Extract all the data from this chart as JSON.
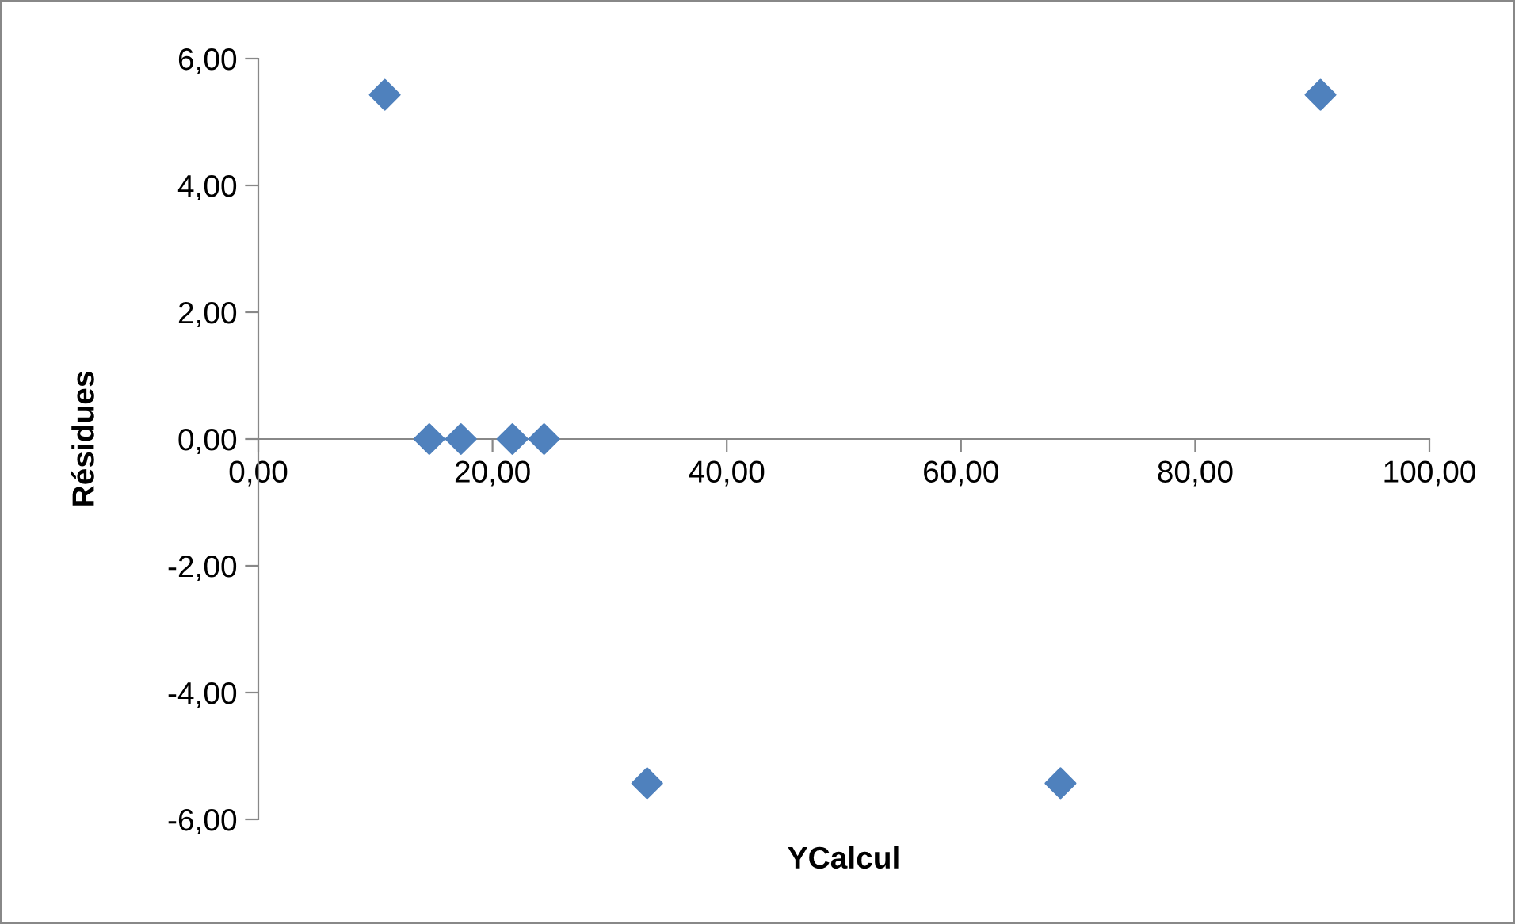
{
  "chart_data": {
    "type": "scatter",
    "xlabel": "YCalcul",
    "ylabel": "Résidues",
    "x": [
      10.8,
      14.6,
      17.3,
      21.7,
      24.4,
      33.2,
      68.5,
      90.7
    ],
    "series": [
      {
        "color": "#4f81bd",
        "values": [
          5.43,
          0,
          0,
          0,
          0,
          -5.43,
          -5.43,
          5.43
        ]
      }
    ],
    "marker": "diamond",
    "xlim": [
      0,
      100
    ],
    "ylim": [
      -6,
      6
    ],
    "xticks": [
      {
        "value": 0,
        "label": "0,00"
      },
      {
        "value": 20,
        "label": "20,00"
      },
      {
        "value": 40,
        "label": "40,00"
      },
      {
        "value": 60,
        "label": "60,00"
      },
      {
        "value": 80,
        "label": "80,00"
      },
      {
        "value": 100,
        "label": "100,00"
      }
    ],
    "yticks": [
      {
        "value": -6,
        "label": "-6,00"
      },
      {
        "value": -4,
        "label": "-4,00"
      },
      {
        "value": -2,
        "label": "-2,00"
      },
      {
        "value": 0,
        "label": "0,00"
      },
      {
        "value": 2,
        "label": "2,00"
      },
      {
        "value": 4,
        "label": "4,00"
      },
      {
        "value": 6,
        "label": "6,00"
      }
    ],
    "grid": false,
    "legend": false
  }
}
